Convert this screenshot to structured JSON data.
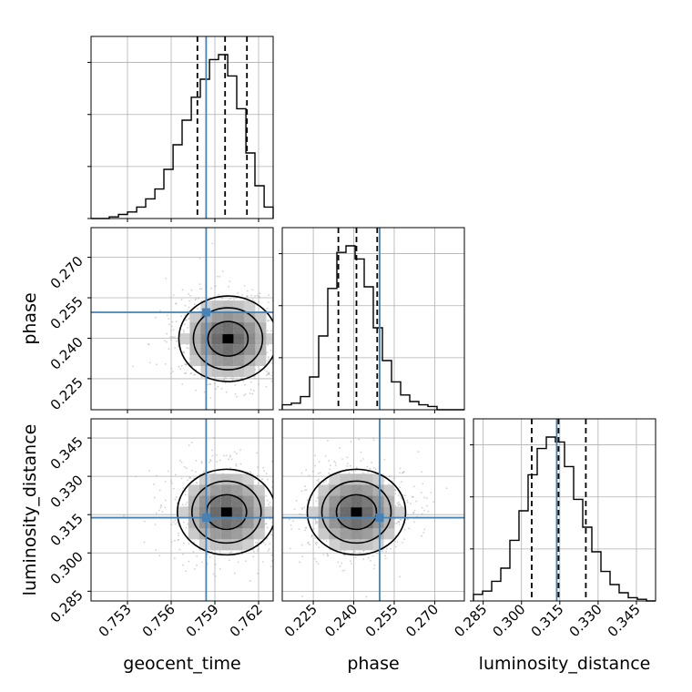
{
  "chart_data": {
    "type": "corner",
    "parameters": [
      "geocent_time",
      "phase",
      "luminosity_distance"
    ],
    "axis_labels": {
      "geocent_time": "geocent_time",
      "phase": "phase",
      "luminosity_distance": "luminosity_distance"
    },
    "ranges": {
      "geocent_time": [
        0.7505,
        0.763
      ],
      "phase": [
        0.2135,
        0.281
      ],
      "luminosity_distance": [
        0.2812,
        0.3525
      ]
    },
    "ticks": {
      "geocent_time": [
        0.753,
        0.756,
        0.759,
        0.762
      ],
      "phase": [
        0.225,
        0.24,
        0.255,
        0.27
      ],
      "luminosity_distance": [
        0.285,
        0.3,
        0.315,
        0.33,
        0.345
      ]
    },
    "tick_labels": {
      "geocent_time": [
        "0.753",
        "0.756",
        "0.759",
        "0.762"
      ],
      "phase": [
        "0.225",
        "0.240",
        "0.255",
        "0.270"
      ],
      "luminosity_distance": [
        "0.285",
        "0.300",
        "0.315",
        "0.330",
        "0.345"
      ]
    },
    "truths": {
      "geocent_time": 0.7584,
      "phase": 0.2496,
      "luminosity_distance": 0.3138
    },
    "quantiles": {
      "geocent_time": [
        0.7578,
        0.7597,
        0.7612
      ],
      "phase": [
        0.2343,
        0.241,
        0.2487
      ],
      "luminosity_distance": [
        0.304,
        0.3145,
        0.3252
      ]
    },
    "marginals": {
      "geocent_time": {
        "bin_edges": [
          0.7505,
          0.75113,
          0.75175,
          0.75238,
          0.753,
          0.75363,
          0.75425,
          0.75488,
          0.7555,
          0.75613,
          0.75675,
          0.75738,
          0.758,
          0.75863,
          0.75925,
          0.75988,
          0.7605,
          0.76113,
          0.76175,
          0.76238,
          0.763
        ],
        "density": [
          0.0,
          0.0,
          0.01,
          0.025,
          0.04,
          0.07,
          0.12,
          0.18,
          0.3,
          0.45,
          0.6,
          0.74,
          0.85,
          0.97,
          1.0,
          0.87,
          0.67,
          0.4,
          0.2,
          0.07
        ]
      },
      "phase": {
        "bin_edges": [
          0.2135,
          0.21688,
          0.22025,
          0.22363,
          0.227,
          0.23038,
          0.23375,
          0.23713,
          0.2405,
          0.24388,
          0.24725,
          0.25063,
          0.254,
          0.25738,
          0.26075,
          0.26413,
          0.2675,
          0.27088,
          0.27425,
          0.27763,
          0.281
        ],
        "density": [
          0.03,
          0.04,
          0.08,
          0.2,
          0.45,
          0.74,
          0.96,
          1.0,
          0.92,
          0.75,
          0.5,
          0.3,
          0.17,
          0.09,
          0.05,
          0.03,
          0.02,
          0.0,
          0.0,
          0.0
        ]
      },
      "luminosity_distance": {
        "bin_edges": [
          0.2812,
          0.28477,
          0.28833,
          0.2919,
          0.29546,
          0.29903,
          0.30259,
          0.30615,
          0.30972,
          0.31328,
          0.31685,
          0.32042,
          0.32398,
          0.32754,
          0.33111,
          0.33468,
          0.33824,
          0.3418,
          0.34537,
          0.34893,
          0.3525
        ],
        "density": [
          0.04,
          0.06,
          0.12,
          0.2,
          0.37,
          0.55,
          0.77,
          0.93,
          1.0,
          0.97,
          0.82,
          0.62,
          0.45,
          0.3,
          0.18,
          0.1,
          0.05,
          0.02,
          0.01,
          0.0
        ]
      }
    },
    "joint_peaks": {
      "phase_vs_geocent_time": {
        "x": 0.7599,
        "y": 0.2398
      },
      "luminosity_distance_vs_geocent_time": {
        "x": 0.7598,
        "y": 0.316
      },
      "luminosity_distance_vs_phase": {
        "x": 0.241,
        "y": 0.316
      }
    },
    "grid": true,
    "colors": {
      "histogram": "#000000",
      "quantile_lines": "#000000",
      "truth": "#4682b4",
      "grid": "#b0b0b0",
      "scatter": "#9a9a9a",
      "contour": "#000000"
    }
  }
}
